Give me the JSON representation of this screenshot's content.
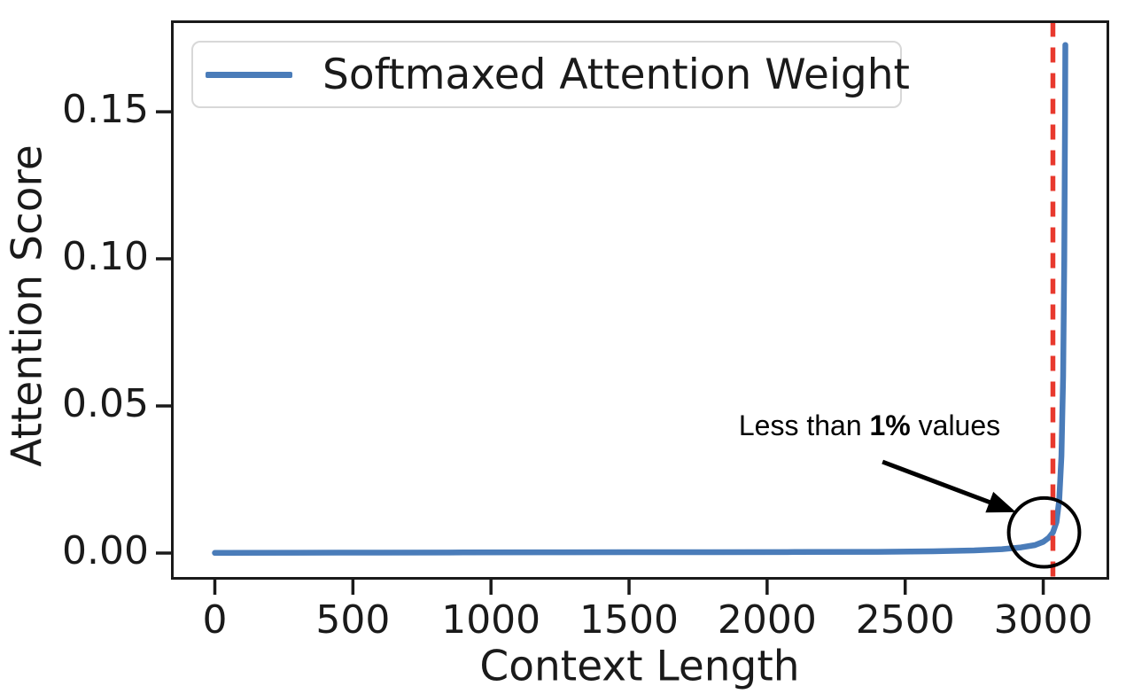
{
  "figure": {
    "background": "#ffffff"
  },
  "chart_data": {
    "type": "line",
    "title": "",
    "xlabel": "Context Length",
    "ylabel": "Attention Score",
    "xlim": [
      -154,
      3234
    ],
    "ylim": [
      -0.0086,
      0.1806
    ],
    "grid": false,
    "xticks": {
      "values": [
        0,
        500,
        1000,
        1500,
        2000,
        2500,
        3000
      ],
      "labels": [
        "0",
        "500",
        "1000",
        "1500",
        "2000",
        "2500",
        "3000"
      ]
    },
    "yticks": {
      "values": [
        0,
        0.05,
        0.1,
        0.15
      ],
      "labels": [
        "0.00",
        "0.05",
        "0.10",
        "0.15"
      ]
    },
    "legend": {
      "position": "upper-left",
      "label": "Softmaxed Attention Weight",
      "line_color": "#4a7cb9"
    },
    "series": [
      {
        "name": "Softmaxed Attention Weight",
        "color": "#4a7cb9",
        "points": [
          [
            0,
            5e-05
          ],
          [
            300,
            0.0001
          ],
          [
            600,
            0.00015
          ],
          [
            900,
            0.0002
          ],
          [
            1200,
            0.00025
          ],
          [
            1500,
            0.0003
          ],
          [
            1800,
            0.0003
          ],
          [
            2100,
            0.00035
          ],
          [
            2400,
            0.0004
          ],
          [
            2600,
            0.0006
          ],
          [
            2750,
            0.0009
          ],
          [
            2850,
            0.0013
          ],
          [
            2920,
            0.0019
          ],
          [
            2970,
            0.0027
          ],
          [
            3000,
            0.0038
          ],
          [
            3020,
            0.0052
          ],
          [
            3035,
            0.007
          ],
          [
            3048,
            0.0105
          ],
          [
            3058,
            0.018
          ],
          [
            3066,
            0.033
          ],
          [
            3072,
            0.06
          ],
          [
            3076,
            0.1
          ],
          [
            3079,
            0.15
          ],
          [
            3080,
            0.1727
          ]
        ]
      }
    ],
    "vline": {
      "x": 3035,
      "color": "#e8392e",
      "style": "dashed",
      "dash": [
        17,
        12
      ]
    },
    "annotation": {
      "text_prefix": "Less than ",
      "text_bold": "1%",
      "text_suffix": " values",
      "text_xy": [
        2371,
        0.0433
      ],
      "arrow_from": [
        2418,
        0.031
      ],
      "arrow_to": [
        2901,
        0.0139
      ],
      "arrow_color": "#000000",
      "ellipse": {
        "cx": 3003,
        "cy": 0.007,
        "rx": 128,
        "ry": 0.0117,
        "color": "#000000"
      }
    },
    "axes_color": "#1a1a1a"
  }
}
